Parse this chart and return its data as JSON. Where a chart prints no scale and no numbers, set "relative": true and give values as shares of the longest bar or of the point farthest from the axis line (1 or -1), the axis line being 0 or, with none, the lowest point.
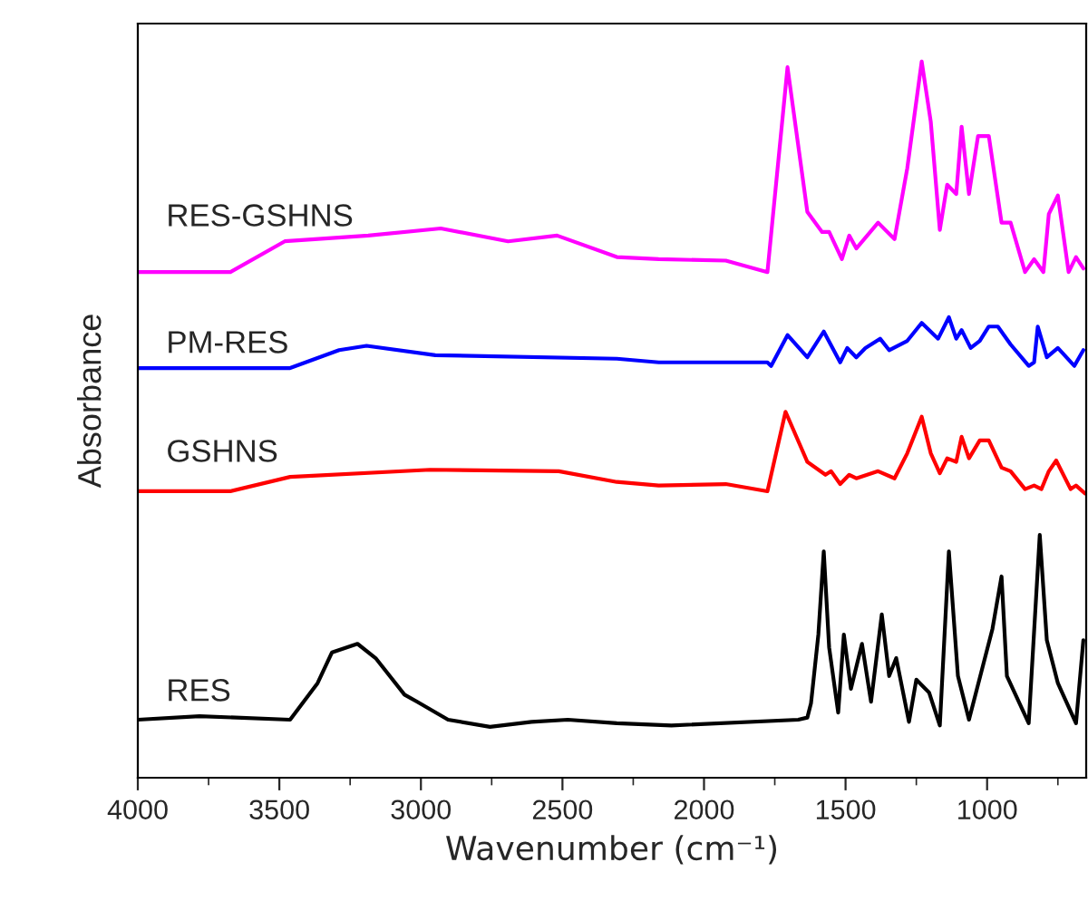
{
  "chart_data": {
    "type": "line",
    "relative": true,
    "xlabel": "Wavenumber (cm⁻¹)",
    "ylabel": "Absorbance",
    "xlim": [
      4000,
      650
    ],
    "xticks": [
      4000,
      3500,
      3000,
      2500,
      2000,
      1500,
      1000
    ],
    "grid": false,
    "legend": false,
    "marker": "none",
    "line_style": "solid",
    "series": [
      {
        "name": "RES-GSHNS",
        "color": "#ff00ff",
        "x": [
          4000,
          3673,
          3481,
          3186,
          2930,
          2692,
          2519,
          2308,
          2160,
          1923,
          1776,
          1705,
          1635,
          1583,
          1558,
          1513,
          1487,
          1462,
          1385,
          1327,
          1282,
          1231,
          1199,
          1167,
          1141,
          1109,
          1090,
          1064,
          1032,
          994,
          949,
          917,
          866,
          834,
          801,
          782,
          750,
          712,
          686,
          660
        ],
        "values": [
          0.706,
          0.706,
          0.749,
          0.757,
          0.767,
          0.749,
          0.757,
          0.727,
          0.724,
          0.722,
          0.706,
          0.992,
          0.79,
          0.762,
          0.762,
          0.724,
          0.757,
          0.739,
          0.775,
          0.752,
          0.851,
          1.0,
          0.916,
          0.765,
          0.828,
          0.815,
          0.909,
          0.815,
          0.896,
          0.896,
          0.775,
          0.775,
          0.706,
          0.724,
          0.706,
          0.787,
          0.813,
          0.706,
          0.727,
          0.711
        ]
      },
      {
        "name": "PM-RES",
        "color": "#0000ff",
        "x": [
          4000,
          3462,
          3289,
          3192,
          2949,
          2308,
          2160,
          1776,
          1763,
          1705,
          1635,
          1577,
          1519,
          1494,
          1462,
          1430,
          1378,
          1346,
          1282,
          1231,
          1173,
          1135,
          1109,
          1090,
          1058,
          1026,
          994,
          962,
          917,
          853,
          834,
          821,
          789,
          750,
          692,
          660
        ],
        "values": [
          0.572,
          0.572,
          0.597,
          0.603,
          0.59,
          0.585,
          0.58,
          0.58,
          0.575,
          0.618,
          0.587,
          0.623,
          0.58,
          0.6,
          0.587,
          0.6,
          0.613,
          0.597,
          0.61,
          0.635,
          0.613,
          0.643,
          0.613,
          0.625,
          0.6,
          0.61,
          0.63,
          0.63,
          0.605,
          0.575,
          0.58,
          0.63,
          0.587,
          0.6,
          0.575,
          0.597
        ]
      },
      {
        "name": "GSHNS",
        "color": "#ff0000",
        "x": [
          4000,
          3673,
          3462,
          2968,
          2513,
          2308,
          2160,
          1923,
          1776,
          1712,
          1635,
          1571,
          1551,
          1519,
          1487,
          1462,
          1385,
          1327,
          1282,
          1231,
          1199,
          1167,
          1141,
          1109,
          1090,
          1064,
          1026,
          994,
          949,
          917,
          866,
          834,
          808,
          782,
          756,
          705,
          686,
          654
        ],
        "values": [
          0.4,
          0.4,
          0.42,
          0.43,
          0.428,
          0.413,
          0.408,
          0.41,
          0.4,
          0.511,
          0.441,
          0.423,
          0.428,
          0.41,
          0.423,
          0.418,
          0.428,
          0.418,
          0.453,
          0.504,
          0.453,
          0.425,
          0.446,
          0.441,
          0.476,
          0.446,
          0.471,
          0.471,
          0.433,
          0.428,
          0.403,
          0.408,
          0.403,
          0.428,
          0.443,
          0.403,
          0.408,
          0.397
        ]
      },
      {
        "name": "RES",
        "color": "#000000",
        "x": [
          4000,
          3782,
          3462,
          3365,
          3314,
          3224,
          3160,
          3058,
          3013,
          2904,
          2756,
          2609,
          2481,
          2308,
          2115,
          1667,
          1635,
          1622,
          1596,
          1577,
          1558,
          1526,
          1506,
          1481,
          1442,
          1410,
          1372,
          1346,
          1321,
          1276,
          1250,
          1205,
          1167,
          1135,
          1103,
          1064,
          981,
          949,
          930,
          853,
          814,
          789,
          750,
          686,
          660
        ],
        "values": [
          0.081,
          0.086,
          0.081,
          0.132,
          0.175,
          0.187,
          0.167,
          0.116,
          0.106,
          0.081,
          0.071,
          0.078,
          0.081,
          0.076,
          0.073,
          0.081,
          0.084,
          0.104,
          0.2,
          0.316,
          0.182,
          0.091,
          0.2,
          0.124,
          0.187,
          0.106,
          0.228,
          0.142,
          0.167,
          0.078,
          0.137,
          0.119,
          0.073,
          0.316,
          0.142,
          0.081,
          0.208,
          0.281,
          0.142,
          0.076,
          0.339,
          0.192,
          0.132,
          0.076,
          0.192
        ]
      }
    ]
  }
}
